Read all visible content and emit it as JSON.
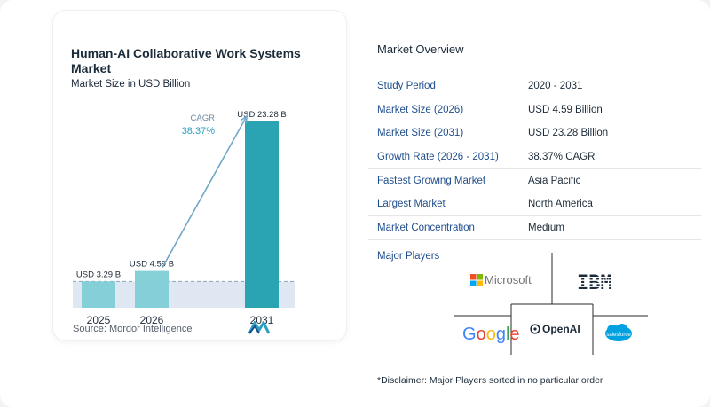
{
  "chart_data": {
    "type": "bar",
    "title": "Human-AI Collaborative Work Systems Market",
    "subtitle": "Market Size in USD Billion",
    "categories": [
      "2025",
      "2026",
      "2031"
    ],
    "values": [
      3.29,
      4.59,
      23.28
    ],
    "data_labels": [
      "USD 3.29 B",
      "USD 4.59 B",
      "USD 23.28 B"
    ],
    "cagr_label": "CAGR",
    "cagr_value": "38.37%",
    "colors": {
      "bar_light": "#7fcfd6",
      "bar_dark": "#2aa3b3",
      "arrow": "#6fa8c8",
      "band": "#dfe8f2"
    }
  },
  "source": "Source:  Mordor Intelligence",
  "overview": {
    "title": "Market Overview",
    "rows": [
      {
        "key": "Study Period",
        "value": "2020 - 2031"
      },
      {
        "key": "Market Size (2026)",
        "value": "USD 4.59 Billion"
      },
      {
        "key": "Market Size (2031)",
        "value": "USD 23.28 Billion"
      },
      {
        "key": "Growth Rate (2026 - 2031)",
        "value": "38.37% CAGR"
      },
      {
        "key": "Fastest Growing Market",
        "value": "Asia Pacific"
      },
      {
        "key": "Largest Market",
        "value": "North America"
      },
      {
        "key": "Market Concentration",
        "value": "Medium"
      }
    ]
  },
  "players": {
    "title": "Major Players",
    "microsoft": "Microsoft",
    "ibm": "IBM",
    "google": "Google",
    "openai": "OpenAI",
    "salesforce": "salesforce"
  },
  "disclaimer": "*Disclaimer: Major Players sorted in no particular order"
}
